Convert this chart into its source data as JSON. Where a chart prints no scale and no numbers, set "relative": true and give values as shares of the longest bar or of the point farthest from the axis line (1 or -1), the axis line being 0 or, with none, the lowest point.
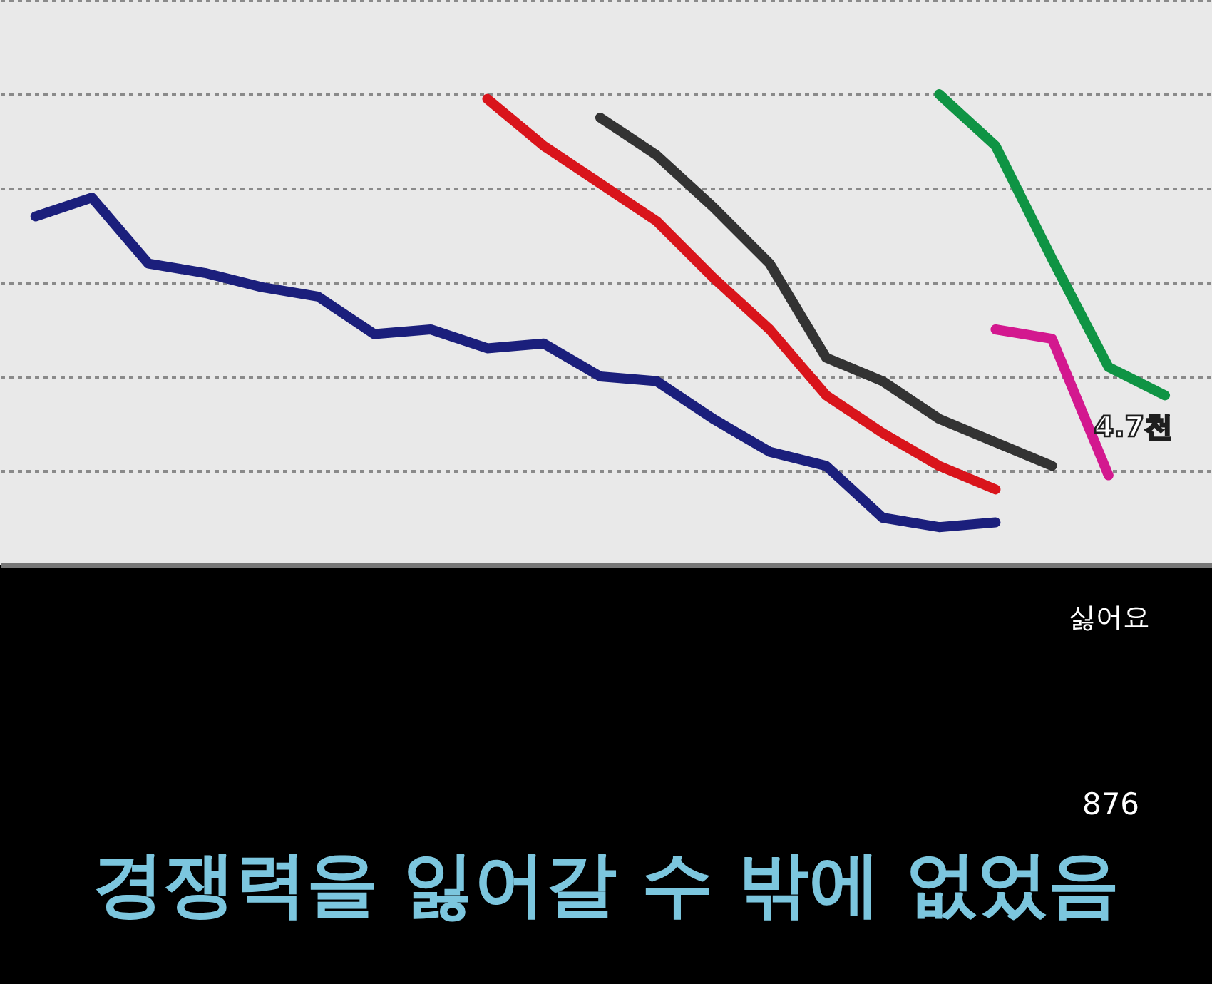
{
  "chart_data": {
    "type": "line",
    "relative": true,
    "categories": [
      null,
      null,
      null,
      null,
      null,
      null,
      null,
      null,
      null,
      null,
      null,
      null,
      null,
      null,
      null,
      null,
      null,
      null,
      null,
      null,
      null
    ],
    "series": [
      {
        "color": "#1b1f7c",
        "values": [
          0.74,
          0.78,
          0.64,
          0.62,
          0.59,
          0.57,
          0.49,
          0.5,
          0.46,
          0.47,
          0.4,
          0.39,
          0.31,
          0.24,
          0.21,
          0.1,
          0.08,
          0.09,
          null,
          null,
          null
        ]
      },
      {
        "color": "#d9141b",
        "values": [
          null,
          null,
          null,
          null,
          null,
          null,
          null,
          null,
          0.99,
          0.89,
          0.81,
          0.73,
          0.61,
          0.5,
          0.36,
          0.28,
          0.21,
          0.16,
          null,
          null,
          null
        ]
      },
      {
        "color": "#333333",
        "values": [
          null,
          null,
          null,
          null,
          null,
          null,
          null,
          null,
          null,
          null,
          0.95,
          0.87,
          0.76,
          0.64,
          0.44,
          0.39,
          0.31,
          0.26,
          0.21,
          null,
          null
        ]
      },
      {
        "color": "#0f9444",
        "values": [
          null,
          null,
          null,
          null,
          null,
          null,
          null,
          null,
          null,
          null,
          null,
          null,
          null,
          null,
          null,
          null,
          1.0,
          0.89,
          0.65,
          0.42,
          0.36
        ]
      },
      {
        "color": "#d3188f",
        "values": [
          null,
          null,
          null,
          null,
          null,
          null,
          null,
          null,
          null,
          null,
          null,
          null,
          null,
          null,
          null,
          null,
          null,
          0.5,
          0.48,
          0.19,
          null
        ]
      }
    ],
    "grid": "y",
    "annotations": [
      "4.7천",
      "싫어요",
      "876",
      "경쟁력을 잃어갈 수 밖에 없었음"
    ]
  }
}
